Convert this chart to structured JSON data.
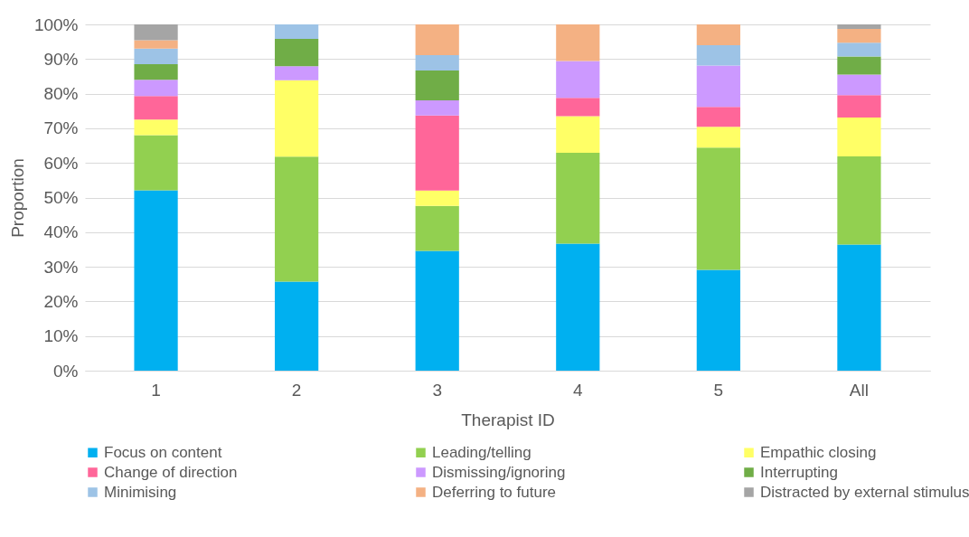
{
  "chart_data": {
    "type": "bar",
    "stacked": true,
    "xlabel": "Therapist ID",
    "ylabel": "Proportion",
    "categories": [
      "1",
      "2",
      "3",
      "4",
      "5",
      "All"
    ],
    "ylim": [
      0,
      100
    ],
    "yticks": [
      {
        "value": 0,
        "label": "0%"
      },
      {
        "value": 10,
        "label": "10%"
      },
      {
        "value": 20,
        "label": "20%"
      },
      {
        "value": 30,
        "label": "30%"
      },
      {
        "value": 40,
        "label": "40%"
      },
      {
        "value": 50,
        "label": "50%"
      },
      {
        "value": 60,
        "label": "60%"
      },
      {
        "value": 70,
        "label": "70%"
      },
      {
        "value": 80,
        "label": "80%"
      },
      {
        "value": 90,
        "label": "90%"
      },
      {
        "value": 100,
        "label": "100%"
      }
    ],
    "grid": "y",
    "legend": "bottom",
    "series": [
      {
        "name": "Focus on content",
        "color": "#00b0f0",
        "values": [
          52.1,
          25.7,
          34.6,
          36.7,
          29.1,
          36.4
        ]
      },
      {
        "name": "Leading/telling",
        "color": "#92d050",
        "values": [
          15.9,
          36.1,
          13.0,
          26.2,
          35.3,
          25.5
        ]
      },
      {
        "name": "Empathic closing",
        "color": "#ffff66",
        "values": [
          4.5,
          22.1,
          4.4,
          10.6,
          6.0,
          11.2
        ]
      },
      {
        "name": "Change of direction",
        "color": "#ff6699",
        "values": [
          6.8,
          0,
          21.7,
          5.3,
          5.8,
          6.5
        ]
      },
      {
        "name": "Dismissing/ignoring",
        "color": "#cc99ff",
        "values": [
          4.7,
          4.0,
          4.4,
          10.6,
          11.9,
          5.9
        ]
      },
      {
        "name": "Interrupting",
        "color": "#70ad47",
        "values": [
          4.5,
          7.9,
          8.6,
          0,
          0,
          5.2
        ]
      },
      {
        "name": "Minimising",
        "color": "#9dc3e6",
        "values": [
          4.5,
          4.2,
          4.4,
          0,
          5.9,
          4.0
        ]
      },
      {
        "name": "Deferring to future",
        "color": "#f4b183",
        "values": [
          2.4,
          0,
          8.9,
          10.6,
          6.0,
          4.0
        ]
      },
      {
        "name": "Distracted by external stimulus",
        "color": "#a5a5a5",
        "values": [
          4.6,
          0,
          0,
          0,
          0,
          1.3
        ]
      }
    ]
  }
}
